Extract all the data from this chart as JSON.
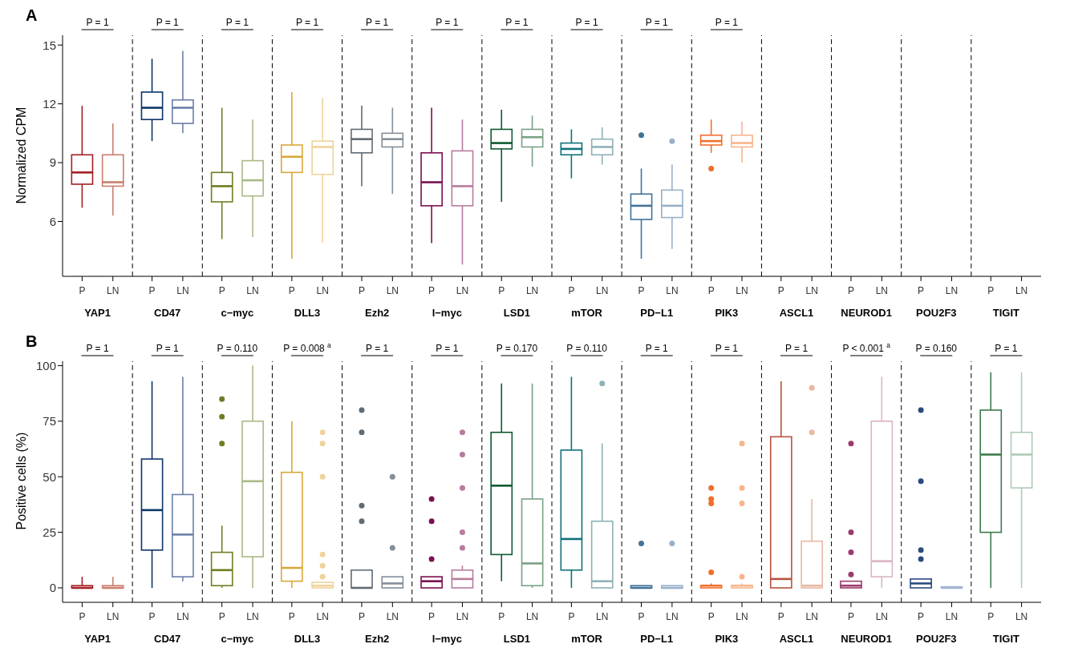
{
  "chart_data": [
    {
      "type": "box",
      "title": "A",
      "ylabel": "Normalized CPM",
      "ylim": [
        3.2,
        15.5
      ],
      "yticks": [
        6,
        9,
        12,
        15
      ],
      "categories": [
        "YAP1",
        "CD47",
        "c−myc",
        "DLL3",
        "Ezh2",
        "l−myc",
        "LSD1",
        "mTOR",
        "PD−L1",
        "PIK3",
        "ASCL1",
        "NEUROD1",
        "POU2F3",
        "TIGIT"
      ],
      "annotations": [
        "P = 1",
        "P = 1",
        "P = 1",
        "P = 1",
        "P = 1",
        "P = 1",
        "P = 1",
        "P = 1",
        "P = 1",
        "P = 1"
      ],
      "series": [
        {
          "name": "P",
          "colors": [
            "#a31f24",
            "#0d3567",
            "#6b7f22",
            "#d9a83a",
            "#5f6b75",
            "#7a1050",
            "#0f5a30",
            "#0f717a",
            "#40739a",
            "#f06f2d",
            null,
            null,
            null,
            null
          ],
          "boxes": [
            {
              "low": 6.7,
              "q1": 7.9,
              "median": 8.5,
              "q3": 9.4,
              "high": 11.9
            },
            {
              "low": 10.1,
              "q1": 11.2,
              "median": 11.8,
              "q3": 12.6,
              "high": 14.3
            },
            {
              "low": 5.1,
              "q1": 7.0,
              "median": 7.8,
              "q3": 8.5,
              "high": 11.8
            },
            {
              "low": 4.1,
              "q1": 8.5,
              "median": 9.3,
              "q3": 9.9,
              "high": 12.6
            },
            {
              "low": 7.8,
              "q1": 9.5,
              "median": 10.2,
              "q3": 10.7,
              "high": 11.9
            },
            {
              "low": 4.9,
              "q1": 6.8,
              "median": 8.0,
              "q3": 9.5,
              "high": 11.8
            },
            {
              "low": 7.0,
              "q1": 9.7,
              "median": 10.0,
              "q3": 10.7,
              "high": 11.7
            },
            {
              "low": 8.2,
              "q1": 9.4,
              "median": 9.7,
              "q3": 10.0,
              "high": 10.7
            },
            {
              "low": 4.1,
              "q1": 6.1,
              "median": 6.8,
              "q3": 7.4,
              "high": 8.7,
              "outliers": [
                10.4
              ]
            },
            {
              "low": 9.5,
              "q1": 9.9,
              "median": 10.1,
              "q3": 10.4,
              "high": 11.2,
              "outliers": [
                8.7
              ]
            },
            null,
            null,
            null,
            null
          ]
        },
        {
          "name": "LN",
          "colors": [
            "#c97d6e",
            "#6b7fa6",
            "#a9ba85",
            "#efd39b",
            "#838f99",
            "#b87b9e",
            "#7aa184",
            "#8fb1b6",
            "#98b0c8",
            "#f7b58e",
            null,
            null,
            null,
            null
          ],
          "boxes": [
            {
              "low": 6.3,
              "q1": 7.8,
              "median": 8.0,
              "q3": 9.4,
              "high": 11.0
            },
            {
              "low": 10.5,
              "q1": 11.0,
              "median": 11.8,
              "q3": 12.2,
              "high": 14.7
            },
            {
              "low": 5.2,
              "q1": 7.3,
              "median": 8.1,
              "q3": 9.1,
              "high": 11.2
            },
            {
              "low": 4.9,
              "q1": 8.4,
              "median": 9.8,
              "q3": 10.1,
              "high": 12.3
            },
            {
              "low": 7.4,
              "q1": 9.8,
              "median": 10.2,
              "q3": 10.5,
              "high": 11.8
            },
            {
              "low": 3.8,
              "q1": 6.8,
              "median": 7.8,
              "q3": 9.6,
              "high": 11.2
            },
            {
              "low": 8.8,
              "q1": 9.8,
              "median": 10.3,
              "q3": 10.7,
              "high": 11.4
            },
            {
              "low": 8.9,
              "q1": 9.4,
              "median": 9.8,
              "q3": 10.2,
              "high": 10.8
            },
            {
              "low": 4.6,
              "q1": 6.2,
              "median": 6.8,
              "q3": 7.6,
              "high": 8.9,
              "outliers": [
                10.1
              ]
            },
            {
              "low": 9.0,
              "q1": 9.8,
              "median": 10.0,
              "q3": 10.4,
              "high": 11.1
            },
            null,
            null,
            null,
            null
          ]
        }
      ]
    },
    {
      "type": "box",
      "title": "B",
      "ylabel": "Positive cells (%)",
      "ylim": [
        -6.5,
        102
      ],
      "yticks": [
        0,
        25,
        50,
        75,
        100
      ],
      "categories": [
        "YAP1",
        "CD47",
        "c−myc",
        "DLL3",
        "Ezh2",
        "l−myc",
        "LSD1",
        "mTOR",
        "PD−L1",
        "PIK3",
        "ASCL1",
        "NEUROD1",
        "POU2F3",
        "TIGIT"
      ],
      "annotations": [
        "P = 1",
        "P = 1",
        "P = 0.110",
        "P = 0.008 $^{a}$",
        "P = 1",
        "P = 1",
        "P = 0.170",
        "P = 0.110",
        "P = 1",
        "P = 1",
        "P = 1",
        "P < 0.001 $^{a}$",
        "P = 0.160",
        "P = 1"
      ],
      "series": [
        {
          "name": "P",
          "colors": [
            "#a31f24",
            "#0d3567",
            "#6b7f22",
            "#d9a83a",
            "#5f6b75",
            "#7a1050",
            "#0f5a30",
            "#0f717a",
            "#40739a",
            "#f06f2d",
            "#b5543d",
            "#9b3b6b",
            "#2c4a80",
            "#3d7a4c"
          ],
          "boxes": [
            {
              "low": 0,
              "q1": 0,
              "median": 0,
              "q3": 1,
              "high": 5
            },
            {
              "low": 0,
              "q1": 17,
              "median": 35,
              "q3": 58,
              "high": 93
            },
            {
              "low": 0,
              "q1": 1,
              "median": 8,
              "q3": 16,
              "high": 28,
              "outliers": [
                65,
                77,
                85
              ]
            },
            {
              "low": 0,
              "q1": 3,
              "median": 9,
              "q3": 52,
              "high": 75
            },
            {
              "low": 0,
              "q1": 0,
              "median": 0,
              "q3": 8,
              "high": 8,
              "outliers": [
                30,
                37,
                70,
                80
              ]
            },
            {
              "low": 0,
              "q1": 0,
              "median": 3,
              "q3": 5,
              "high": 5,
              "outliers": [
                13,
                30,
                40
              ]
            },
            {
              "low": 3,
              "q1": 15,
              "median": 46,
              "q3": 70,
              "high": 92
            },
            {
              "low": 0,
              "q1": 8,
              "median": 22,
              "q3": 62,
              "high": 95
            },
            {
              "low": 0,
              "q1": 0,
              "median": 0,
              "q3": 1,
              "high": 1,
              "outliers": [
                20
              ]
            },
            {
              "low": 0,
              "q1": 0,
              "median": 1,
              "q3": 1,
              "high": 2,
              "outliers": [
                7,
                38,
                40,
                45
              ]
            },
            {
              "low": 0,
              "q1": 0,
              "median": 4,
              "q3": 68,
              "high": 93
            },
            {
              "low": 0,
              "q1": 0,
              "median": 1,
              "q3": 3,
              "high": 3,
              "outliers": [
                6,
                16,
                25,
                65
              ]
            },
            {
              "low": 0,
              "q1": 0,
              "median": 2,
              "q3": 4,
              "high": 4,
              "outliers": [
                13,
                17,
                48,
                80
              ]
            },
            {
              "low": 0,
              "q1": 25,
              "median": 60,
              "q3": 80,
              "high": 97
            }
          ]
        },
        {
          "name": "LN",
          "colors": [
            "#c97d6e",
            "#6b7fa6",
            "#a9ba85",
            "#efd39b",
            "#838f99",
            "#b87b9e",
            "#7aa184",
            "#8fb1b6",
            "#98b0c8",
            "#f7b58e",
            "#e7b8a3",
            "#dbb4c6",
            "#a6b4d3",
            "#aecbb4"
          ],
          "boxes": [
            {
              "low": 0,
              "q1": 0,
              "median": 0,
              "q3": 1,
              "high": 5
            },
            {
              "low": 3,
              "q1": 5,
              "median": 24,
              "q3": 42,
              "high": 95
            },
            {
              "low": 0,
              "q1": 14,
              "median": 48,
              "q3": 75,
              "high": 100
            },
            {
              "low": 0,
              "q1": 0,
              "median": 1,
              "q3": 2.5,
              "high": 2.5,
              "outliers": [
                5,
                10,
                15,
                50,
                65,
                70
              ]
            },
            {
              "low": 0,
              "q1": 0,
              "median": 2,
              "q3": 5,
              "high": 5,
              "outliers": [
                18,
                50
              ]
            },
            {
              "low": 0,
              "q1": 0,
              "median": 4,
              "q3": 8,
              "high": 10,
              "outliers": [
                18,
                25,
                45,
                60,
                70
              ]
            },
            {
              "low": 0,
              "q1": 1,
              "median": 11,
              "q3": 40,
              "high": 92
            },
            {
              "low": 0,
              "q1": 0,
              "median": 3,
              "q3": 30,
              "high": 65,
              "outliers": [
                92
              ]
            },
            {
              "low": 0,
              "q1": 0,
              "median": 0,
              "q3": 1,
              "high": 1,
              "outliers": [
                20
              ]
            },
            {
              "low": 0,
              "q1": 0,
              "median": 1,
              "q3": 1,
              "high": 2,
              "outliers": [
                5,
                38,
                45,
                65
              ]
            },
            {
              "low": 0,
              "q1": 0,
              "median": 1,
              "q3": 21,
              "high": 40,
              "outliers": [
                70,
                90
              ]
            },
            {
              "low": 0,
              "q1": 5,
              "median": 12,
              "q3": 75,
              "high": 95
            },
            {
              "low": 0,
              "q1": 0,
              "median": 0,
              "q3": 0.5,
              "high": 0.5
            },
            {
              "low": 0,
              "q1": 45,
              "median": 60,
              "q3": 70,
              "high": 97
            }
          ]
        }
      ]
    }
  ]
}
